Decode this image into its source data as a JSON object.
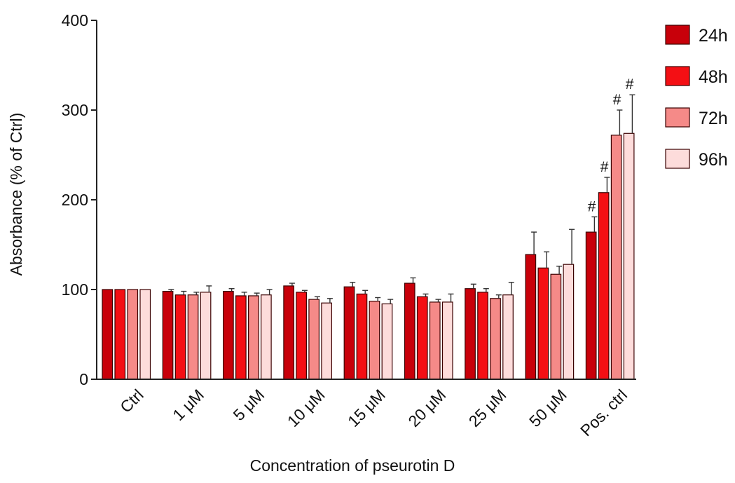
{
  "chart_data": {
    "type": "bar",
    "title": "",
    "xlabel": "Concentration of pseurotin D",
    "ylabel": "Absorbance (% of Ctrl)",
    "ylim": [
      0,
      400
    ],
    "yticks": [
      "0",
      "100",
      "200",
      "300",
      "400"
    ],
    "grid": false,
    "legend_position": "top-right",
    "categories": [
      "Ctrl",
      "1 μM",
      "5 μM",
      "10 μM",
      "15 μM",
      "20 μM",
      "25 μM",
      "50 μM",
      "Pos. ctrl"
    ],
    "series": [
      {
        "name": "24h",
        "color": "#c8000a",
        "values": [
          100,
          98,
          98,
          104,
          103,
          107,
          101,
          139,
          164
        ],
        "errors": [
          0,
          2,
          3,
          3,
          5,
          6,
          5,
          25,
          17
        ],
        "annotations": [
          "",
          "",
          "",
          "",
          "",
          "",
          "",
          "",
          "#"
        ]
      },
      {
        "name": "48h",
        "color": "#f40f14",
        "values": [
          100,
          94,
          93,
          97,
          95,
          92,
          97,
          124,
          208
        ],
        "errors": [
          0,
          4,
          4,
          2,
          4,
          3,
          4,
          18,
          17
        ],
        "annotations": [
          "",
          "",
          "",
          "",
          "",
          "",
          "",
          "",
          "#"
        ]
      },
      {
        "name": "72h",
        "color": "#f58a88",
        "values": [
          100,
          94,
          93,
          89,
          87,
          86,
          90,
          117,
          272
        ],
        "errors": [
          0,
          3,
          3,
          3,
          4,
          3,
          4,
          9,
          28
        ],
        "annotations": [
          "",
          "",
          "",
          "",
          "",
          "",
          "",
          "",
          "#"
        ]
      },
      {
        "name": "96h",
        "color": "#fddcdb",
        "values": [
          100,
          97,
          94,
          85,
          84,
          86,
          94,
          128,
          274
        ],
        "errors": [
          0,
          7,
          6,
          5,
          5,
          9,
          14,
          39,
          43
        ],
        "annotations": [
          "",
          "",
          "",
          "",
          "",
          "",
          "",
          "",
          "#"
        ]
      }
    ]
  }
}
